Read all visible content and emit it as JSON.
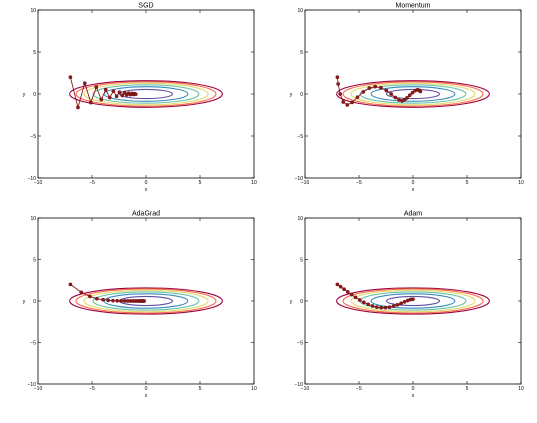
{
  "chart_data": [
    {
      "type": "line",
      "title": "SGD",
      "xlabel": "x",
      "ylabel": "y",
      "xlim": [
        -10,
        10
      ],
      "ylim": [
        -10,
        10
      ],
      "x_ticks": [
        -10,
        -5,
        0,
        5,
        10
      ],
      "y_ticks": [
        -10,
        -5,
        0,
        5,
        10
      ],
      "contour": {
        "function": "f(x, y) = x^2/20 + y^2",
        "levels": [
          0.3,
          0.75,
          1.2,
          1.65,
          2.1,
          2.5
        ],
        "colors": [
          "#5e4fa2",
          "#3288bd",
          "#66c2a5",
          "#e6d96e",
          "#f46d43",
          "#9e0142"
        ]
      },
      "series": [
        {
          "marker": "o",
          "color": "#8b1a1a",
          "x": [
            -7.0,
            -6.3,
            -5.67,
            -5.11,
            -4.6,
            -4.14,
            -3.73,
            -3.36,
            -3.02,
            -2.72,
            -2.45,
            -2.2,
            -1.98,
            -1.79,
            -1.61,
            -1.45,
            -1.3,
            -1.17,
            -1.05,
            -0.95
          ],
          "y": [
            2.0,
            -1.6,
            1.28,
            -1.02,
            0.82,
            -0.66,
            0.52,
            -0.42,
            0.34,
            -0.27,
            0.22,
            -0.17,
            0.14,
            -0.11,
            0.09,
            -0.07,
            0.06,
            -0.05,
            0.04,
            -0.03
          ]
        }
      ]
    },
    {
      "type": "line",
      "title": "Momentum",
      "xlabel": "x",
      "ylabel": "y",
      "xlim": [
        -10,
        10
      ],
      "ylim": [
        -10,
        10
      ],
      "x_ticks": [
        -10,
        -5,
        0,
        5,
        10
      ],
      "y_ticks": [
        -10,
        -5,
        0,
        5,
        10
      ],
      "contour": {
        "function": "f(x, y) = x^2/20 + y^2",
        "levels": [
          0.3,
          0.75,
          1.2,
          1.65,
          2.1,
          2.5
        ],
        "colors": [
          "#5e4fa2",
          "#3288bd",
          "#66c2a5",
          "#e6d96e",
          "#f46d43",
          "#9e0142"
        ]
      },
      "series": [
        {
          "marker": "o",
          "color": "#8b1a1a",
          "x": [
            -7.0,
            -6.93,
            -6.74,
            -6.46,
            -6.08,
            -5.64,
            -5.14,
            -4.6,
            -4.05,
            -3.5,
            -2.97,
            -2.47,
            -2.02,
            -1.63,
            -1.29,
            -1.01,
            -0.78,
            -0.55,
            -0.3,
            -0.05,
            0.2,
            0.42,
            0.58,
            0.68
          ],
          "y": [
            2.0,
            1.2,
            0.0,
            -0.95,
            -1.3,
            -1.0,
            -0.38,
            0.25,
            0.7,
            0.88,
            0.75,
            0.42,
            0.0,
            -0.42,
            -0.72,
            -0.82,
            -0.7,
            -0.46,
            -0.15,
            0.15,
            0.4,
            0.5,
            0.44,
            0.3
          ]
        }
      ]
    },
    {
      "type": "line",
      "title": "AdaGrad",
      "xlabel": "x",
      "ylabel": "y",
      "xlim": [
        -10,
        10
      ],
      "ylim": [
        -10,
        10
      ],
      "x_ticks": [
        -10,
        -5,
        0,
        5,
        10
      ],
      "y_ticks": [
        -10,
        -5,
        0,
        5,
        10
      ],
      "contour": {
        "function": "f(x, y) = x^2/20 + y^2",
        "levels": [
          0.3,
          0.75,
          1.2,
          1.65,
          2.1,
          2.5
        ],
        "colors": [
          "#5e4fa2",
          "#3288bd",
          "#66c2a5",
          "#e6d96e",
          "#f46d43",
          "#9e0142"
        ]
      },
      "series": [
        {
          "marker": "o",
          "color": "#8b1a1a",
          "x": [
            -7.0,
            -6.0,
            -5.2,
            -4.55,
            -3.98,
            -3.5,
            -3.06,
            -2.67,
            -2.31,
            -1.98,
            -1.69,
            -1.42,
            -1.18,
            -0.97,
            -0.78,
            -0.62,
            -0.48,
            -0.36,
            -0.26,
            -0.17
          ],
          "y": [
            2.0,
            1.05,
            0.55,
            0.28,
            0.15,
            0.08,
            0.04,
            0.02,
            0.01,
            0.005,
            0.003,
            0.0,
            0.0,
            0.0,
            0.0,
            0.0,
            0.0,
            0.0,
            0.0,
            0.0
          ]
        }
      ]
    },
    {
      "type": "line",
      "title": "Adam",
      "xlabel": "x",
      "ylabel": "y",
      "xlim": [
        -10,
        10
      ],
      "ylim": [
        -10,
        10
      ],
      "x_ticks": [
        -10,
        -5,
        0,
        5,
        10
      ],
      "y_ticks": [
        -10,
        -5,
        0,
        5,
        10
      ],
      "contour": {
        "function": "f(x, y) = x^2/20 + y^2",
        "levels": [
          0.3,
          0.75,
          1.2,
          1.65,
          2.1,
          2.5
        ],
        "colors": [
          "#5e4fa2",
          "#3288bd",
          "#66c2a5",
          "#e6d96e",
          "#f46d43",
          "#9e0142"
        ]
      },
      "series": [
        {
          "marker": "o",
          "color": "#8b1a1a",
          "x": [
            -7.0,
            -6.7,
            -6.38,
            -6.04,
            -5.69,
            -5.32,
            -4.94,
            -4.55,
            -4.15,
            -3.75,
            -3.35,
            -2.95,
            -2.56,
            -2.17,
            -1.8,
            -1.44,
            -1.1,
            -0.78,
            -0.48,
            -0.22,
            0.0
          ],
          "y": [
            2.0,
            1.72,
            1.42,
            1.1,
            0.77,
            0.44,
            0.12,
            -0.16,
            -0.4,
            -0.6,
            -0.74,
            -0.8,
            -0.8,
            -0.74,
            -0.62,
            -0.46,
            -0.28,
            -0.1,
            0.06,
            0.18,
            0.22
          ]
        }
      ]
    }
  ]
}
